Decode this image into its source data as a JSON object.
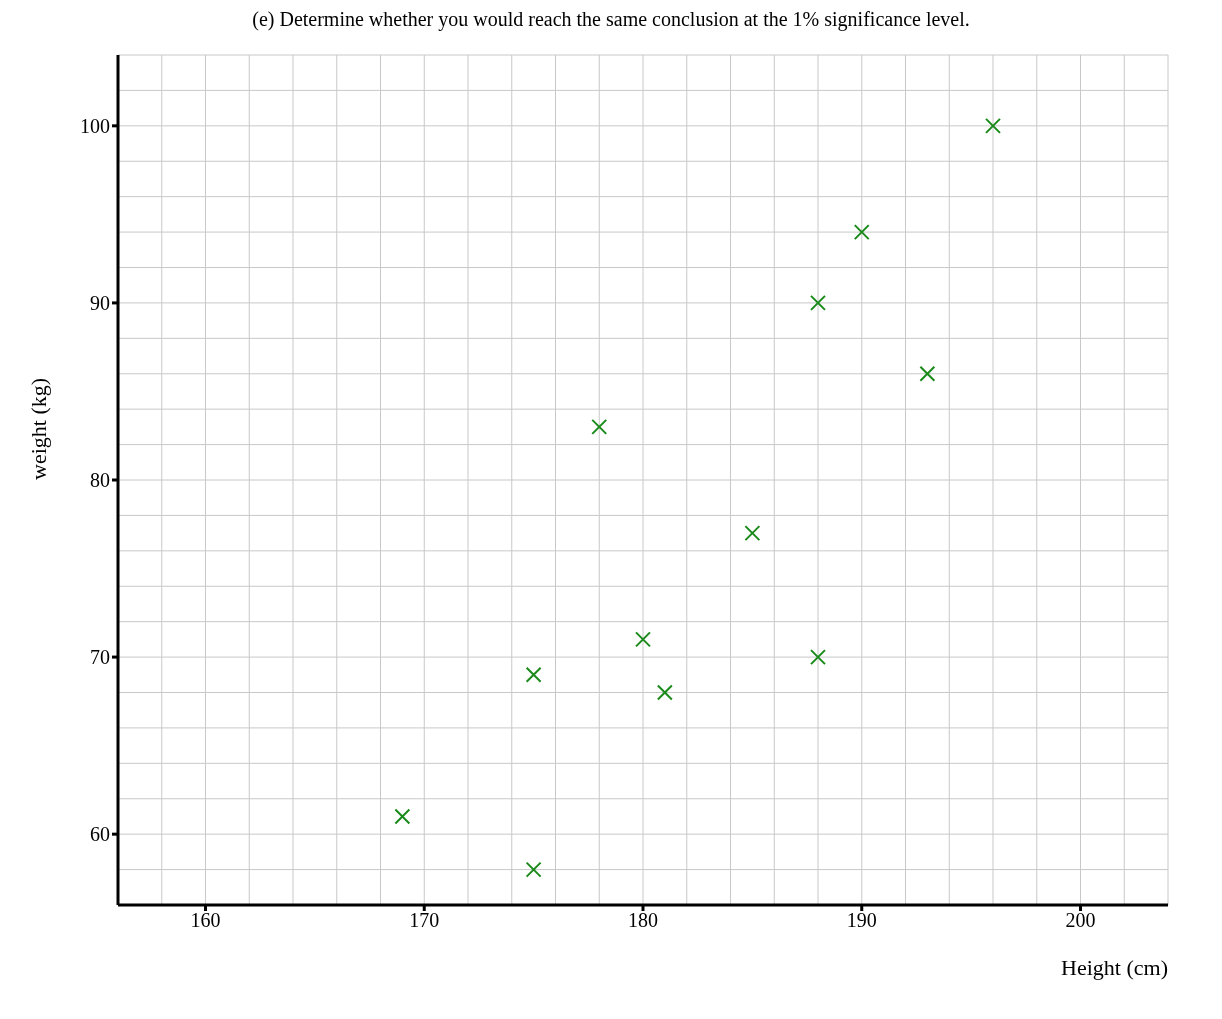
{
  "chart_data": {
    "type": "scatter",
    "title": "(e) Determine whether you would reach the same conclusion at the 1% significance level.",
    "xlabel": "Height (cm)",
    "ylabel": "weight (kg)",
    "x": [
      169,
      175,
      175,
      178,
      180,
      181,
      185,
      188,
      188,
      190,
      193,
      196
    ],
    "values": [
      61,
      69,
      58,
      83,
      71,
      68,
      77,
      90,
      70,
      94,
      86,
      100
    ],
    "color": "#1a8a1a",
    "marker": "cross",
    "xlim": [
      156,
      204
    ],
    "xticks": [
      160,
      170,
      180,
      190,
      200
    ],
    "ylim": [
      56,
      104
    ],
    "yticks": [
      60,
      70,
      80,
      90,
      100
    ],
    "grid": true
  }
}
